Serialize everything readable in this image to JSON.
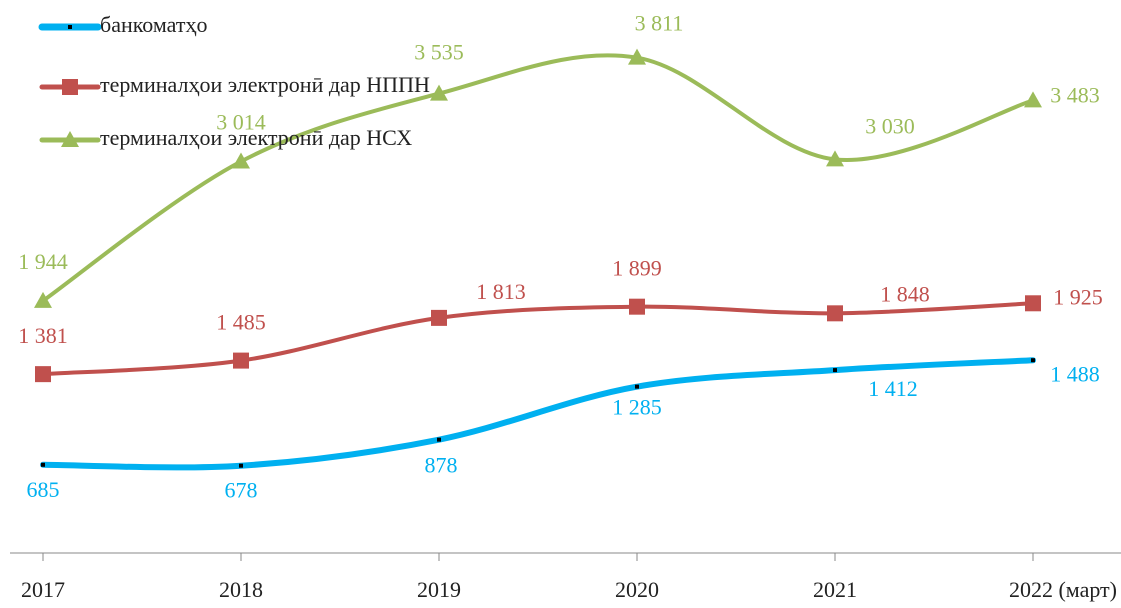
{
  "chart_data": {
    "type": "line",
    "categories": [
      "2017",
      "2018",
      "2019",
      "2020",
      "2021",
      "2022 (март)"
    ],
    "series": [
      {
        "name": "банкоматҳо",
        "color": "#00b0f0",
        "marker": "dot",
        "values": [
          685,
          678,
          878,
          1285,
          1412,
          1488
        ],
        "value_labels": [
          "685",
          "678",
          "878",
          "1 285",
          "1 412",
          "1 488"
        ]
      },
      {
        "name": "терминалҳои электронӣ дар НППН",
        "color": "#c0504d",
        "marker": "square",
        "values": [
          1381,
          1485,
          1813,
          1899,
          1848,
          1925
        ],
        "value_labels": [
          "1 381",
          "1 485",
          "1 813",
          "1 899",
          "1 848",
          "1 925"
        ]
      },
      {
        "name": "терминалҳои электронӣ дар НСХ",
        "color": "#9bbb59",
        "marker": "triangle",
        "values": [
          1944,
          3014,
          3535,
          3811,
          3030,
          3483
        ],
        "value_labels": [
          "1 944",
          "3 014",
          "3 535",
          "3 811",
          "3 030",
          "3 483"
        ]
      }
    ],
    "ylim": [
      0,
      4200
    ],
    "smooth": true
  }
}
